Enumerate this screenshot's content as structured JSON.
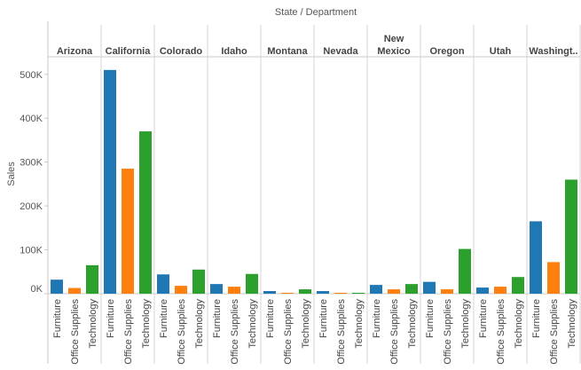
{
  "chart_data": {
    "type": "bar",
    "title": "State  /  Department",
    "ylabel": "Sales",
    "ylim": [
      0,
      540000
    ],
    "yticks": [
      {
        "value": 0,
        "label": "0K"
      },
      {
        "value": 100000,
        "label": "100K"
      },
      {
        "value": 200000,
        "label": "200K"
      },
      {
        "value": 300000,
        "label": "300K"
      },
      {
        "value": 400000,
        "label": "400K"
      },
      {
        "value": 500000,
        "label": "500K"
      }
    ],
    "departments": [
      "Furniture",
      "Office Supplies",
      "Technology"
    ],
    "department_colors": [
      "#1f77b4",
      "#ff7f0e",
      "#2ca02c"
    ],
    "states": [
      {
        "name": "Arizona",
        "values": [
          32000,
          13000,
          65000
        ]
      },
      {
        "name": "California",
        "values": [
          510000,
          285000,
          370000
        ]
      },
      {
        "name": "Colorado",
        "values": [
          44000,
          18000,
          55000
        ]
      },
      {
        "name": "Idaho",
        "values": [
          22000,
          16000,
          45000
        ]
      },
      {
        "name": "Montana",
        "values": [
          6000,
          2000,
          10000
        ]
      },
      {
        "name": "Nevada",
        "values": [
          6000,
          2000,
          2000
        ]
      },
      {
        "name": "New Mexico",
        "values": [
          20000,
          10000,
          22000
        ]
      },
      {
        "name": "Oregon",
        "values": [
          27000,
          10000,
          102000
        ]
      },
      {
        "name": "Utah",
        "values": [
          14000,
          16000,
          38000
        ]
      },
      {
        "name": "Washingt..",
        "values": [
          165000,
          72000,
          260000
        ]
      }
    ]
  }
}
